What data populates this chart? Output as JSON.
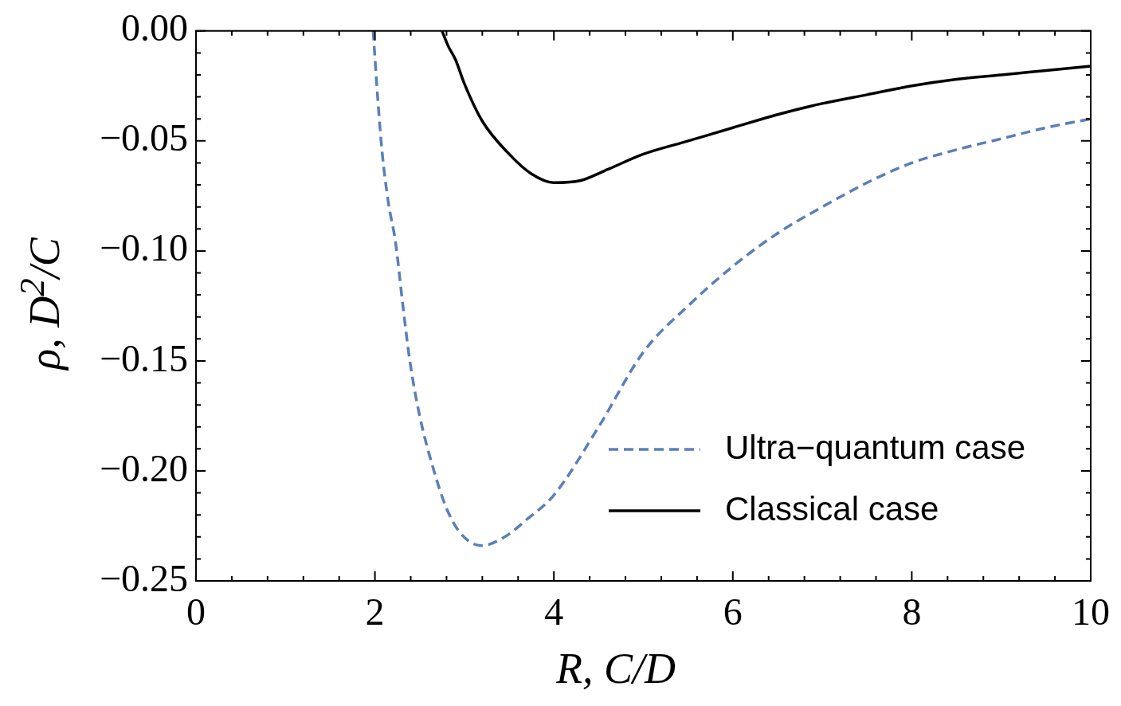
{
  "chart_data": {
    "type": "line",
    "xlabel": "R, C/D",
    "ylabel": "ρ, D$^{2}$/C",
    "xlim": [
      0,
      10
    ],
    "xticks": [
      0,
      2,
      4,
      6,
      8,
      10
    ],
    "ylim": [
      -0.25,
      0
    ],
    "yticks": [
      {
        "value": 0,
        "label": "0.00"
      },
      {
        "value": -0.05,
        "label": "−0.05"
      },
      {
        "value": -0.1,
        "label": "−0.10"
      },
      {
        "value": -0.15,
        "label": "−0.15"
      },
      {
        "value": -0.2,
        "label": "−0.20"
      },
      {
        "value": -0.25,
        "label": "−0.25"
      }
    ],
    "grid": false,
    "legend": "bottom right",
    "marker": "none",
    "series": [
      {
        "name": "Ultra−quantum case",
        "color": "#5a7fba",
        "line_style": "dashed",
        "x": [
          1.98,
          2.03,
          2.08,
          2.15,
          2.23,
          2.31,
          2.39,
          2.5,
          2.66,
          2.8,
          2.95,
          3.19,
          3.45,
          3.7,
          4.0,
          4.5,
          5.0,
          5.5,
          6.0,
          6.5,
          7.0,
          7.5,
          8.0,
          8.5,
          9.0,
          9.5,
          10.0
        ],
        "values": [
          0,
          -0.03,
          -0.055,
          -0.078,
          -0.096,
          -0.124,
          -0.15,
          -0.175,
          -0.2,
          -0.217,
          -0.228,
          -0.234,
          -0.23,
          -0.222,
          -0.211,
          -0.18,
          -0.146,
          -0.125,
          -0.107,
          -0.092,
          -0.08,
          -0.069,
          -0.06,
          -0.054,
          -0.049,
          -0.044,
          -0.04
        ]
      },
      {
        "name": "Classical case",
        "color": "#000000",
        "line_style": "solid",
        "x": [
          2.75,
          2.82,
          2.9,
          3.0,
          3.2,
          3.5,
          3.75,
          4.0,
          4.3,
          4.6,
          5.0,
          5.5,
          6.0,
          6.5,
          7.0,
          7.5,
          8.0,
          8.5,
          9.0,
          9.5,
          10.0
        ],
        "values": [
          0,
          -0.007,
          -0.013,
          -0.024,
          -0.041,
          -0.056,
          -0.065,
          -0.069,
          -0.068,
          -0.063,
          -0.056,
          -0.05,
          -0.044,
          -0.038,
          -0.033,
          -0.029,
          -0.025,
          -0.022,
          -0.02,
          -0.018,
          -0.016
        ]
      }
    ]
  }
}
